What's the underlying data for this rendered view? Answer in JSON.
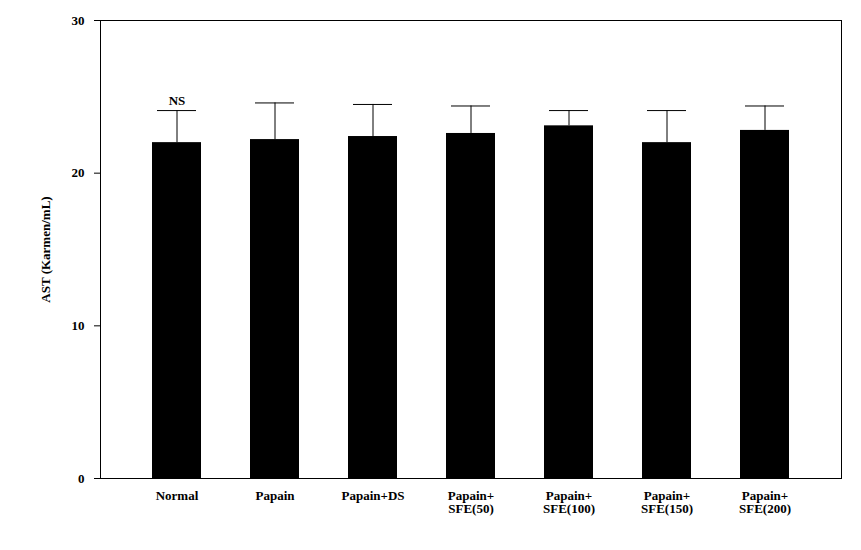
{
  "chart_data": {
    "type": "bar",
    "categories": [
      "Normal",
      "Papain",
      "Papain+DS",
      "Papain+\nSFE(50)",
      "Papain+\nSFE(100)",
      "Papain+\nSFE(150)",
      "Papain+\nSFE(200)"
    ],
    "values": [
      22.0,
      22.2,
      22.4,
      22.6,
      23.1,
      22.0,
      22.8
    ],
    "errors": [
      2.1,
      2.4,
      2.1,
      1.8,
      1.0,
      2.1,
      1.6
    ],
    "color": "#000000",
    "y_label": "AST (Karmen/mL)",
    "ylim": [
      0,
      30
    ],
    "yticks": [
      0,
      10,
      20,
      30
    ],
    "grid": false,
    "annotations": [
      {
        "text": "NS",
        "category": "Normal"
      }
    ]
  }
}
